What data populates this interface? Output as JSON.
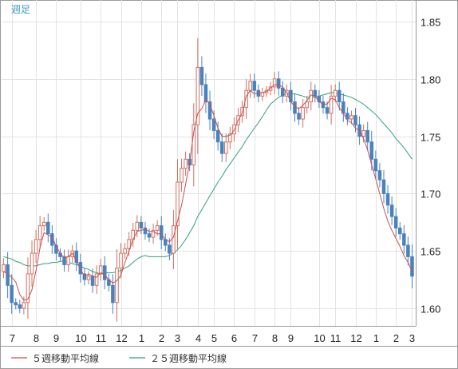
{
  "chart_data": {
    "type": "candlestick",
    "period_label": "週足",
    "y_axis": {
      "min": 1.58,
      "max": 1.87,
      "ticks": [
        "1.85",
        "1.80",
        "1.75",
        "1.70",
        "1.65",
        "1.60"
      ],
      "tick_values": [
        1.85,
        1.8,
        1.75,
        1.7,
        1.65,
        1.6
      ],
      "position": "right"
    },
    "x_axis": {
      "labels": [
        "7",
        "8",
        "9",
        "10",
        "11",
        "12",
        "1",
        "2",
        "3",
        "4",
        "5",
        "6",
        "7",
        "8",
        "9",
        "10",
        "11",
        "12",
        "1",
        "2",
        "3"
      ],
      "label_index": [
        2,
        8,
        13,
        19,
        24,
        29,
        34,
        39,
        43,
        48,
        52,
        57,
        62,
        67,
        71,
        78,
        82,
        87,
        92,
        97,
        101
      ]
    },
    "grid": true,
    "legend": [
      {
        "label": "５週移動平均線",
        "color": "#c85050"
      },
      {
        "label": "２５週移動平均線",
        "color": "#2fa37a"
      }
    ],
    "colors": {
      "up": "#d07060",
      "down": "#4a82bf",
      "ma5": "#c85050",
      "ma25": "#2fa37a",
      "grid": "#e3e3e3",
      "frame": "#9a9a9a"
    },
    "closes": [
      1.638,
      1.62,
      1.605,
      1.603,
      1.6,
      1.605,
      1.63,
      1.648,
      1.66,
      1.672,
      1.675,
      1.665,
      1.655,
      1.648,
      1.645,
      1.638,
      1.645,
      1.65,
      1.64,
      1.63,
      1.625,
      1.628,
      1.62,
      1.63,
      1.637,
      1.625,
      1.62,
      1.605,
      1.635,
      1.648,
      1.652,
      1.66,
      1.668,
      1.675,
      1.67,
      1.665,
      1.662,
      1.668,
      1.672,
      1.66,
      1.655,
      1.648,
      1.672,
      1.71,
      1.722,
      1.73,
      1.725,
      1.76,
      1.81,
      1.795,
      1.78,
      1.765,
      1.755,
      1.745,
      1.735,
      1.745,
      1.752,
      1.76,
      1.768,
      1.775,
      1.79,
      1.798,
      1.79,
      1.785,
      1.788,
      1.79,
      1.793,
      1.8,
      1.792,
      1.785,
      1.79,
      1.78,
      1.77,
      1.765,
      1.775,
      1.78,
      1.79,
      1.785,
      1.78,
      1.775,
      1.77,
      1.785,
      1.79,
      1.78,
      1.77,
      1.765,
      1.768,
      1.76,
      1.75,
      1.755,
      1.745,
      1.73,
      1.72,
      1.712,
      1.7,
      1.69,
      1.68,
      1.67,
      1.665,
      1.655,
      1.645,
      1.628
    ],
    "ma5": [
      1.632,
      1.63,
      1.627,
      1.623,
      1.612,
      1.607,
      1.608,
      1.616,
      1.633,
      1.653,
      1.666,
      1.664,
      1.662,
      1.654,
      1.648,
      1.644,
      1.645,
      1.648,
      1.641,
      1.634,
      1.628,
      1.63,
      1.628,
      1.627,
      1.631,
      1.629,
      1.625,
      1.622,
      1.624,
      1.629,
      1.64,
      1.65,
      1.66,
      1.667,
      1.668,
      1.669,
      1.667,
      1.667,
      1.665,
      1.665,
      1.66,
      1.658,
      1.662,
      1.676,
      1.69,
      1.708,
      1.727,
      1.754,
      1.77,
      1.774,
      1.782,
      1.778,
      1.768,
      1.757,
      1.75,
      1.75,
      1.751,
      1.755,
      1.764,
      1.77,
      1.785,
      1.79,
      1.787,
      1.788,
      1.788,
      1.789,
      1.792,
      1.795,
      1.795,
      1.793,
      1.788,
      1.78,
      1.776,
      1.774,
      1.777,
      1.781,
      1.786,
      1.785,
      1.78,
      1.778,
      1.778,
      1.783,
      1.782,
      1.775,
      1.77,
      1.764,
      1.762,
      1.757,
      1.755,
      1.748,
      1.738,
      1.725,
      1.713,
      1.7,
      1.687,
      1.676,
      1.668,
      1.661,
      1.654,
      1.646,
      1.64,
      1.632
    ],
    "ma25": [
      1.645,
      1.644,
      1.643,
      1.641,
      1.64,
      1.638,
      1.637,
      1.637,
      1.637,
      1.638,
      1.639,
      1.639,
      1.64,
      1.64,
      1.641,
      1.641,
      1.64,
      1.639,
      1.638,
      1.637,
      1.635,
      1.634,
      1.632,
      1.631,
      1.63,
      1.631,
      1.631,
      1.631,
      1.632,
      1.633,
      1.635,
      1.637,
      1.64,
      1.643,
      1.645,
      1.646,
      1.645,
      1.645,
      1.645,
      1.645,
      1.645,
      1.646,
      1.648,
      1.651,
      1.655,
      1.66,
      1.666,
      1.672,
      1.68,
      1.686,
      1.692,
      1.698,
      1.704,
      1.71,
      1.715,
      1.721,
      1.726,
      1.731,
      1.736,
      1.741,
      1.747,
      1.752,
      1.757,
      1.762,
      1.767,
      1.773,
      1.778,
      1.781,
      1.784,
      1.786,
      1.787,
      1.787,
      1.787,
      1.786,
      1.785,
      1.784,
      1.784,
      1.784,
      1.785,
      1.786,
      1.787,
      1.788,
      1.788,
      1.787,
      1.786,
      1.785,
      1.784,
      1.782,
      1.78,
      1.778,
      1.775,
      1.772,
      1.769,
      1.765,
      1.761,
      1.757,
      1.753,
      1.748,
      1.744,
      1.74,
      1.735,
      1.73
    ]
  }
}
